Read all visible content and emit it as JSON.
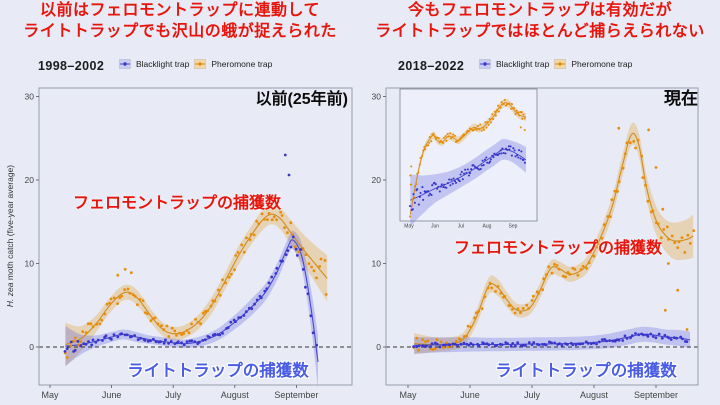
{
  "colors": {
    "background": "#e8ebf6",
    "title_red": "#e8150c",
    "era_black": "#0b0b0b",
    "blue_label": "#4a5ce4",
    "axis_text": "#444444",
    "panel_border": "#959eac",
    "zero_line": "#333333",
    "pheromone_line": "#cf8c1f",
    "pheromone_point": "#e68d0c",
    "pheromone_band": "rgba(228,158,45,0.32)",
    "blacklight_line": "#4747d1",
    "blacklight_point": "#3a36cc",
    "blacklight_band": "rgba(96,98,222,0.30)",
    "legend_key_blue_fill": "#c9cdf3",
    "legend_key_orange_fill": "#f3d8a4",
    "inset_bg": "#edf0fa",
    "inset_border": "#7a8290"
  },
  "panels": [
    {
      "title_lines": [
        "以前はフェロモントラップに連動して",
        "ライトトラップでも沢山の蛾が捉えられた"
      ],
      "period": "1998–2002",
      "corner_label": "以前(25年前)",
      "legend": [
        "Blacklight trap",
        "Pheromone trap"
      ],
      "ylabel_italic": "H. zea",
      "ylabel_rest": " moth catch (five-year average)",
      "annotations": {
        "pheromone": "フェロモントラップの捕獲数",
        "blacklight": "ライトトラップの捕獲数"
      }
    },
    {
      "title_lines": [
        "今もフェロモントラップは有効だが",
        "ライトトラップではほとんど捕らえられない"
      ],
      "period": "2018–2022",
      "corner_label": "現在",
      "legend": [
        "Blacklight trap",
        "Pheromone trap"
      ],
      "annotations": {
        "pheromone": "フェロモントラップの捕獲数",
        "blacklight": "ライトトラップの捕獲数"
      }
    }
  ],
  "chart_data": [
    {
      "type": "line+scatter",
      "title": "1998–2002",
      "xlabel": "",
      "ylabel": "H. zea moth catch (five-year average)",
      "x_ticks": [
        "May",
        "June",
        "July",
        "August",
        "September"
      ],
      "y_ticks": [
        0,
        10,
        20,
        30
      ],
      "ylim": [
        -4.5,
        31.5
      ],
      "zero_dashed_line": true,
      "legend_position": "top",
      "series": [
        {
          "name": "Pheromone trap",
          "color_key": "pheromone",
          "x": [
            0.25,
            0.5,
            0.75,
            0.95,
            1.15,
            1.3,
            1.45,
            1.65,
            1.85,
            2.05,
            2.25,
            2.45,
            2.65,
            2.85,
            3.05,
            3.25,
            3.45,
            3.6,
            3.75,
            3.9,
            4.1,
            4.3,
            4.5
          ],
          "y": [
            0.3,
            1.0,
            2.8,
            4.8,
            6.3,
            6.5,
            5.6,
            3.6,
            2.0,
            1.6,
            2.1,
            3.3,
            5.3,
            8.0,
            10.8,
            13.2,
            15.2,
            15.9,
            15.3,
            13.8,
            11.8,
            10.0,
            8.2
          ],
          "band": [
            2.6,
            1.5,
            1.0,
            0.9,
            0.9,
            0.9,
            0.9,
            0.8,
            0.8,
            0.8,
            0.8,
            0.9,
            1.0,
            1.0,
            1.1,
            1.1,
            1.2,
            1.2,
            1.3,
            1.5,
            1.8,
            2.2,
            2.8
          ],
          "spread": 0.75,
          "seed": 12,
          "outliers": [
            [
              1.1,
              8.6
            ],
            [
              1.22,
              9.3
            ],
            [
              1.32,
              8.9
            ]
          ]
        },
        {
          "name": "Blacklight trap",
          "color_key": "blacklight",
          "x": [
            0.25,
            0.5,
            0.75,
            1.0,
            1.2,
            1.4,
            1.6,
            1.8,
            2.0,
            2.2,
            2.45,
            2.7,
            2.9,
            3.1,
            3.3,
            3.5,
            3.7,
            3.85,
            3.95,
            4.1,
            4.25,
            4.35
          ],
          "y": [
            0.1,
            0.3,
            0.7,
            1.2,
            1.5,
            1.2,
            0.9,
            0.7,
            0.5,
            0.4,
            0.7,
            1.4,
            2.4,
            3.6,
            5.0,
            6.6,
            9.2,
            11.8,
            12.8,
            10.5,
            4.0,
            -1.8
          ],
          "band": [
            2.4,
            1.2,
            0.7,
            0.6,
            0.6,
            0.6,
            0.5,
            0.5,
            0.5,
            0.5,
            0.6,
            0.7,
            0.8,
            0.9,
            1.0,
            1.0,
            1.0,
            1.0,
            1.1,
            1.6,
            2.4,
            3.2
          ],
          "spread": 0.5,
          "seed": 11,
          "outliers": [
            [
              3.82,
              23
            ],
            [
              3.88,
              20.6
            ]
          ]
        }
      ]
    },
    {
      "type": "line+scatter",
      "title": "2018–2022",
      "xlabel": "",
      "x_ticks": [
        "May",
        "June",
        "July",
        "August",
        "September"
      ],
      "y_ticks": [
        0,
        10,
        20,
        30
      ],
      "ylim": [
        -4.5,
        31.5
      ],
      "zero_dashed_line": true,
      "legend_position": "top",
      "series": [
        {
          "name": "Pheromone trap",
          "color_key": "pheromone",
          "x": [
            0.1,
            0.4,
            0.7,
            0.9,
            1.1,
            1.3,
            1.45,
            1.6,
            1.76,
            1.95,
            2.1,
            2.3,
            2.45,
            2.6,
            2.75,
            2.9,
            3.1,
            3.3,
            3.45,
            3.6,
            3.72,
            3.85,
            4.0,
            4.15,
            4.3,
            4.5,
            4.6
          ],
          "y": [
            0.4,
            0.3,
            0.4,
            1.0,
            3.5,
            7.3,
            7.1,
            5.6,
            4.4,
            4.6,
            6.3,
            9.4,
            9.3,
            8.7,
            9.0,
            10.0,
            13.0,
            17.0,
            21.5,
            25.4,
            24.3,
            19.0,
            15.2,
            13.4,
            12.7,
            12.9,
            13.3
          ],
          "band": [
            1.3,
            0.9,
            0.8,
            0.8,
            0.9,
            1.0,
            1.0,
            0.9,
            0.8,
            0.8,
            0.9,
            0.9,
            0.9,
            0.9,
            0.9,
            1.0,
            1.1,
            1.2,
            1.3,
            1.3,
            1.4,
            1.5,
            1.7,
            1.9,
            2.2,
            2.4,
            2.6
          ],
          "spread": 0.7,
          "seed": 22,
          "outliers": [
            [
              3.88,
              26
            ],
            [
              3.4,
              26.2
            ],
            [
              4.0,
              21.5
            ],
            [
              4.11,
              16.5
            ],
            [
              4.2,
              10
            ],
            [
              4.35,
              6.8
            ],
            [
              4.15,
              4.4
            ],
            [
              4.5,
              2.1
            ]
          ]
        },
        {
          "name": "Blacklight trap",
          "color_key": "blacklight",
          "x": [
            0.1,
            0.5,
            1.0,
            1.5,
            2.0,
            2.5,
            2.9,
            3.2,
            3.5,
            3.75,
            3.95,
            4.15,
            4.35,
            4.55
          ],
          "y": [
            0.2,
            0.25,
            0.3,
            0.3,
            0.35,
            0.4,
            0.5,
            0.7,
            1.1,
            1.5,
            1.45,
            1.2,
            1.1,
            0.85
          ],
          "band": [
            1.0,
            0.9,
            0.85,
            0.8,
            0.8,
            0.8,
            0.8,
            0.85,
            0.9,
            0.9,
            0.9,
            0.9,
            0.95,
            1.0
          ],
          "spread": 0.3,
          "seed": 21,
          "outliers": []
        }
      ],
      "inset": {
        "x_ticks": [
          "May",
          "Jun",
          "Jul",
          "Aug",
          "Sep"
        ],
        "y_scale": "relative (unlabeled, log-like zoom of same data)",
        "ylim": [
          0,
          1
        ],
        "series": [
          {
            "name": "Pheromone trap",
            "color_key": "pheromone",
            "x": [
              0.05,
              0.2,
              0.4,
              0.6,
              0.8,
              0.95,
              1.1,
              1.3,
              1.5,
              1.7,
              1.9,
              2.1,
              2.3,
              2.5,
              2.7,
              2.9,
              3.1,
              3.3,
              3.5,
              3.7,
              3.9,
              4.1,
              4.3,
              4.5
            ],
            "y": [
              0.05,
              0.22,
              0.42,
              0.56,
              0.63,
              0.66,
              0.62,
              0.61,
              0.65,
              0.64,
              0.62,
              0.65,
              0.69,
              0.72,
              0.71,
              0.73,
              0.77,
              0.82,
              0.88,
              0.91,
              0.89,
              0.84,
              0.81,
              0.8
            ],
            "band": 0.03,
            "spread": 1.0,
            "seed": 32,
            "outliers": [
              [
                0.05,
                0.35
              ],
              [
                0.07,
                0.28
              ],
              [
                0.09,
                0.42
              ],
              [
                4.3,
                0.72
              ],
              [
                4.45,
                0.7
              ]
            ]
          },
          {
            "name": "Blacklight trap",
            "color_key": "blacklight",
            "x": [
              0.05,
              0.5,
              1.0,
              1.5,
              2.0,
              2.5,
              3.0,
              3.3,
              3.6,
              3.9,
              4.2,
              4.5
            ],
            "y": [
              0.16,
              0.2,
              0.25,
              0.29,
              0.34,
              0.4,
              0.47,
              0.51,
              0.55,
              0.54,
              0.51,
              0.47
            ],
            "band": [
              0.2,
              0.15,
              0.11,
              0.09,
              0.08,
              0.08,
              0.08,
              0.08,
              0.08,
              0.08,
              0.09,
              0.1
            ],
            "spread": 0.45,
            "seed": 31,
            "outliers": []
          }
        ]
      }
    }
  ]
}
